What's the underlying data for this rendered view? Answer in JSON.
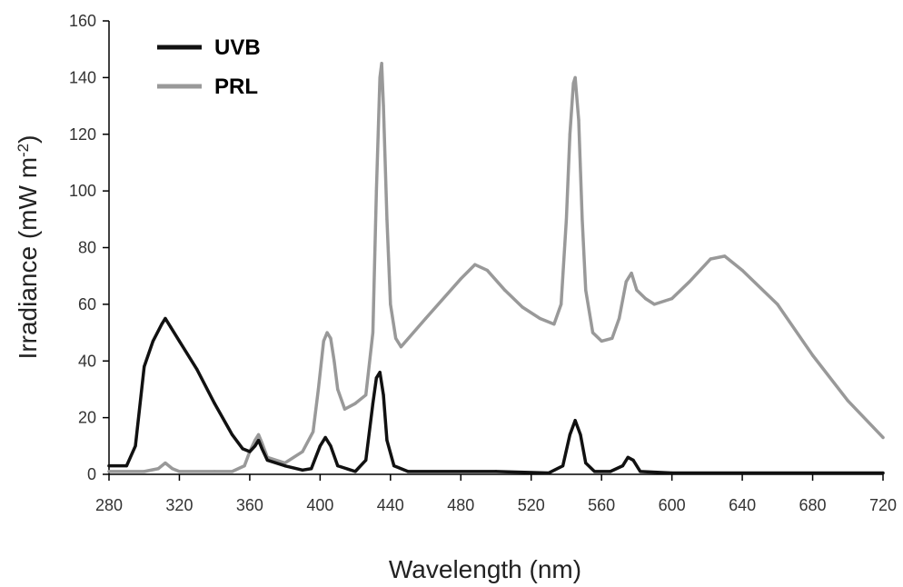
{
  "chart_data": {
    "type": "line",
    "xlabel": "Wavelength (nm)",
    "ylabel": {
      "base": "Irradiance (mW m",
      "sup": "-2",
      "close": ")"
    },
    "xlim": [
      280,
      720
    ],
    "ylim": [
      0,
      160
    ],
    "x_ticks": [
      280,
      320,
      360,
      400,
      440,
      480,
      520,
      560,
      600,
      640,
      680,
      720
    ],
    "y_ticks": [
      0,
      20,
      40,
      60,
      80,
      100,
      120,
      140,
      160
    ],
    "grid": false,
    "legend_position": "top-left",
    "series": [
      {
        "name": "UVB",
        "color": "#111111",
        "points": [
          [
            280,
            3
          ],
          [
            290,
            3
          ],
          [
            295,
            10
          ],
          [
            300,
            38
          ],
          [
            305,
            47
          ],
          [
            310,
            53
          ],
          [
            312,
            55
          ],
          [
            315,
            52
          ],
          [
            320,
            47
          ],
          [
            330,
            37
          ],
          [
            340,
            25
          ],
          [
            350,
            14
          ],
          [
            356,
            9
          ],
          [
            360,
            8
          ],
          [
            363,
            10
          ],
          [
            365,
            12
          ],
          [
            367,
            9
          ],
          [
            370,
            5
          ],
          [
            380,
            3
          ],
          [
            390,
            1.5
          ],
          [
            395,
            2
          ],
          [
            400,
            10
          ],
          [
            403,
            13
          ],
          [
            406,
            10
          ],
          [
            410,
            3
          ],
          [
            420,
            1
          ],
          [
            426,
            5
          ],
          [
            430,
            25
          ],
          [
            432,
            34
          ],
          [
            434,
            36
          ],
          [
            436,
            28
          ],
          [
            438,
            12
          ],
          [
            442,
            3
          ],
          [
            450,
            1
          ],
          [
            500,
            1
          ],
          [
            530,
            0.5
          ],
          [
            538,
            3
          ],
          [
            542,
            14
          ],
          [
            545,
            19
          ],
          [
            548,
            14
          ],
          [
            551,
            4
          ],
          [
            556,
            1
          ],
          [
            565,
            1
          ],
          [
            572,
            3
          ],
          [
            575,
            6
          ],
          [
            578,
            5
          ],
          [
            582,
            1
          ],
          [
            600,
            0.5
          ],
          [
            720,
            0.5
          ]
        ]
      },
      {
        "name": "PRL",
        "color": "#999999",
        "points": [
          [
            280,
            1
          ],
          [
            300,
            1
          ],
          [
            308,
            2
          ],
          [
            312,
            4
          ],
          [
            316,
            2
          ],
          [
            320,
            1
          ],
          [
            340,
            1
          ],
          [
            350,
            1
          ],
          [
            357,
            3
          ],
          [
            360,
            8
          ],
          [
            363,
            12
          ],
          [
            365,
            14
          ],
          [
            367,
            11
          ],
          [
            370,
            6
          ],
          [
            380,
            4
          ],
          [
            390,
            8
          ],
          [
            396,
            15
          ],
          [
            399,
            30
          ],
          [
            402,
            47
          ],
          [
            404,
            50
          ],
          [
            406,
            48
          ],
          [
            408,
            40
          ],
          [
            410,
            30
          ],
          [
            414,
            23
          ],
          [
            420,
            25
          ],
          [
            426,
            28
          ],
          [
            430,
            50
          ],
          [
            432,
            100
          ],
          [
            434,
            140
          ],
          [
            435,
            145
          ],
          [
            436,
            130
          ],
          [
            438,
            90
          ],
          [
            440,
            60
          ],
          [
            443,
            48
          ],
          [
            446,
            45
          ],
          [
            460,
            55
          ],
          [
            480,
            69
          ],
          [
            488,
            74
          ],
          [
            495,
            72
          ],
          [
            505,
            65
          ],
          [
            515,
            59
          ],
          [
            525,
            55
          ],
          [
            533,
            53
          ],
          [
            537,
            60
          ],
          [
            540,
            90
          ],
          [
            542,
            120
          ],
          [
            544,
            138
          ],
          [
            545,
            140
          ],
          [
            547,
            125
          ],
          [
            549,
            90
          ],
          [
            551,
            65
          ],
          [
            555,
            50
          ],
          [
            560,
            47
          ],
          [
            566,
            48
          ],
          [
            570,
            55
          ],
          [
            574,
            68
          ],
          [
            577,
            71
          ],
          [
            580,
            65
          ],
          [
            585,
            62
          ],
          [
            590,
            60
          ],
          [
            600,
            62
          ],
          [
            610,
            68
          ],
          [
            622,
            76
          ],
          [
            630,
            77
          ],
          [
            640,
            72
          ],
          [
            660,
            60
          ],
          [
            680,
            42
          ],
          [
            700,
            26
          ],
          [
            720,
            13
          ]
        ]
      }
    ]
  }
}
